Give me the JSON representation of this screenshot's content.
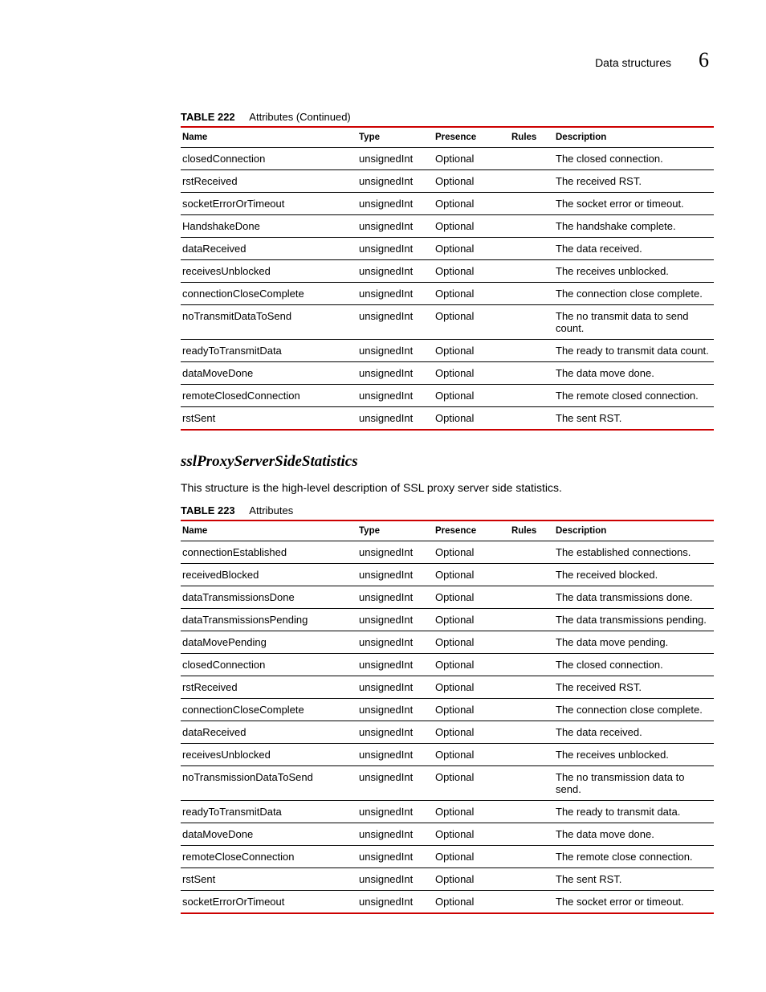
{
  "header": {
    "title": "Data structures",
    "chapter": "6"
  },
  "table222": {
    "label": "TABLE 222",
    "title": "Attributes  (Continued)",
    "columns": [
      "Name",
      "Type",
      "Presence",
      "Rules",
      "Description"
    ],
    "rows": [
      [
        "closedConnection",
        "unsignedInt",
        "Optional",
        "",
        "The closed connection."
      ],
      [
        "rstReceived",
        "unsignedInt",
        "Optional",
        "",
        "The received RST."
      ],
      [
        "socketErrorOrTimeout",
        "unsignedInt",
        "Optional",
        "",
        "The socket error or timeout."
      ],
      [
        "HandshakeDone",
        "unsignedInt",
        "Optional",
        "",
        "The handshake complete."
      ],
      [
        "dataReceived",
        "unsignedInt",
        "Optional",
        "",
        "The data received."
      ],
      [
        "receivesUnblocked",
        "unsignedInt",
        "Optional",
        "",
        "The receives unblocked."
      ],
      [
        "connectionCloseComplete",
        "unsignedInt",
        "Optional",
        "",
        "The connection close complete."
      ],
      [
        "noTransmitDataToSend",
        "unsignedInt",
        "Optional",
        "",
        "The no transmit data to send count."
      ],
      [
        "readyToTransmitData",
        "unsignedInt",
        "Optional",
        "",
        "The ready to transmit data count."
      ],
      [
        "dataMoveDone",
        "unsignedInt",
        "Optional",
        "",
        "The data move done."
      ],
      [
        "remoteClosedConnection",
        "unsignedInt",
        "Optional",
        "",
        "The remote closed connection."
      ],
      [
        "rstSent",
        "unsignedInt",
        "Optional",
        "",
        "The sent RST."
      ]
    ]
  },
  "section": {
    "title": "sslProxyServerSideStatistics",
    "description": "This structure is the high-level description of SSL proxy server side statistics."
  },
  "table223": {
    "label": "TABLE 223",
    "title": "Attributes",
    "columns": [
      "Name",
      "Type",
      "Presence",
      "Rules",
      "Description"
    ],
    "rows": [
      [
        "connectionEstablished",
        "unsignedInt",
        "Optional",
        "",
        "The established connections."
      ],
      [
        "receivedBlocked",
        "unsignedInt",
        "Optional",
        "",
        "The received blocked."
      ],
      [
        "dataTransmissionsDone",
        "unsignedInt",
        "Optional",
        "",
        "The data transmissions done."
      ],
      [
        "dataTransmissionsPending",
        "unsignedInt",
        "Optional",
        "",
        "The data transmissions pending."
      ],
      [
        "dataMovePending",
        "unsignedInt",
        "Optional",
        "",
        "The data move pending."
      ],
      [
        "closedConnection",
        "unsignedInt",
        "Optional",
        "",
        "The closed connection."
      ],
      [
        "rstReceived",
        "unsignedInt",
        "Optional",
        "",
        "The received RST."
      ],
      [
        "connectionCloseComplete",
        "unsignedInt",
        "Optional",
        "",
        "The connection close complete."
      ],
      [
        "dataReceived",
        "unsignedInt",
        "Optional",
        "",
        "The data received."
      ],
      [
        "receivesUnblocked",
        "unsignedInt",
        "Optional",
        "",
        "The receives unblocked."
      ],
      [
        "noTransmissionDataToSend",
        "unsignedInt",
        "Optional",
        "",
        "The no transmission data to send."
      ],
      [
        "readyToTransmitData",
        "unsignedInt",
        "Optional",
        "",
        "The ready to transmit data."
      ],
      [
        "dataMoveDone",
        "unsignedInt",
        "Optional",
        "",
        "The data move done."
      ],
      [
        "remoteCloseConnection",
        "unsignedInt",
        "Optional",
        "",
        "The remote close connection."
      ],
      [
        "rstSent",
        "unsignedInt",
        "Optional",
        "",
        "The sent RST."
      ],
      [
        "socketErrorOrTimeout",
        "unsignedInt",
        "Optional",
        "",
        "The socket error or timeout."
      ]
    ]
  }
}
